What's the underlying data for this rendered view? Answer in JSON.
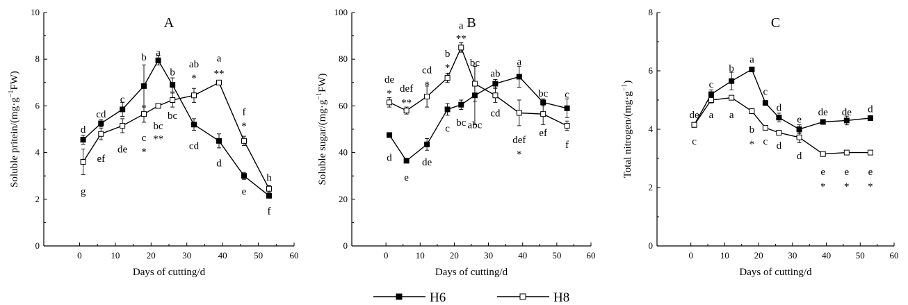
{
  "legend": [
    {
      "name": "H6",
      "marker": "filled-square"
    },
    {
      "name": "H8",
      "marker": "open-square"
    }
  ],
  "chart_data": [
    {
      "type": "line",
      "title": "A",
      "xlabel": "Days of cutting/d",
      "ylabel_main": "Soluble pritein/(mg·g",
      "ylabel_sup": "−1",
      "ylabel_tail": "FW)",
      "xlim": [
        -10,
        60
      ],
      "ylim": [
        0,
        10
      ],
      "xticks": [
        0,
        10,
        20,
        30,
        40,
        50,
        60
      ],
      "yticks": [
        0,
        2,
        4,
        6,
        8,
        10
      ],
      "x": [
        1,
        6,
        12,
        18,
        22,
        26,
        32,
        39,
        46,
        53
      ],
      "series": [
        {
          "name": "H6",
          "values": [
            4.55,
            5.25,
            5.85,
            6.85,
            7.95,
            6.9,
            5.2,
            4.5,
            3.0,
            2.15
          ],
          "errors": [
            0.2,
            0.15,
            0.3,
            0.9,
            0.2,
            0.3,
            0.25,
            0.3,
            0.15,
            0.1
          ]
        },
        {
          "name": "H8",
          "values": [
            3.6,
            4.8,
            5.15,
            5.65,
            6.0,
            6.25,
            6.45,
            7.0,
            4.5,
            2.45
          ],
          "errors": [
            0.55,
            0.25,
            0.3,
            0.35,
            0.1,
            0.3,
            0.3,
            0.05,
            0.2,
            0.15
          ]
        }
      ],
      "annotations": [
        {
          "text": "d",
          "x": 1,
          "y": 5.0
        },
        {
          "text": "g",
          "x": 1,
          "y": 2.35
        },
        {
          "text": "cd",
          "x": 6,
          "y": 5.65
        },
        {
          "text": "ef",
          "x": 6,
          "y": 3.75
        },
        {
          "text": "c",
          "x": 12,
          "y": 6.3
        },
        {
          "text": "de",
          "x": 12,
          "y": 4.15
        },
        {
          "text": "b",
          "x": 18,
          "y": 8.1
        },
        {
          "text": "c",
          "x": 18,
          "y": 4.65
        },
        {
          "text": "*",
          "x": 18,
          "y": 4.05
        },
        {
          "text": "a",
          "x": 22,
          "y": 8.3
        },
        {
          "text": "bc",
          "x": 22,
          "y": 5.15
        },
        {
          "text": "**",
          "x": 22,
          "y": 4.6
        },
        {
          "text": "b",
          "x": 26,
          "y": 7.45
        },
        {
          "text": "bc",
          "x": 26,
          "y": 5.6
        },
        {
          "text": "ab",
          "x": 32,
          "y": 7.8
        },
        {
          "text": "*",
          "x": 32,
          "y": 7.2
        },
        {
          "text": "cd",
          "x": 32,
          "y": 4.3
        },
        {
          "text": "a",
          "x": 39,
          "y": 8.05
        },
        {
          "text": "**",
          "x": 39,
          "y": 7.4
        },
        {
          "text": "d",
          "x": 39,
          "y": 3.55
        },
        {
          "text": "f",
          "x": 46,
          "y": 5.75
        },
        {
          "text": "*",
          "x": 46,
          "y": 5.15
        },
        {
          "text": "e",
          "x": 46,
          "y": 2.35
        },
        {
          "text": "h",
          "x": 53,
          "y": 2.95
        },
        {
          "text": "f",
          "x": 53,
          "y": 1.5
        }
      ]
    },
    {
      "type": "line",
      "title": "B",
      "xlabel": "Days of cutting/d",
      "ylabel_main": "Soluble sugar/(mg·g",
      "ylabel_sup": "−1",
      "ylabel_tail": "FW)",
      "xlim": [
        -10,
        60
      ],
      "ylim": [
        0,
        100
      ],
      "xticks": [
        0,
        10,
        20,
        30,
        40,
        50,
        60
      ],
      "yticks": [
        0,
        20,
        40,
        60,
        80,
        100
      ],
      "x": [
        1,
        6,
        12,
        18,
        22,
        26,
        32,
        39,
        46,
        53
      ],
      "series": [
        {
          "name": "H6",
          "values": [
            47.5,
            36.5,
            43.5,
            58.5,
            60.5,
            64.5,
            69.5,
            72.5,
            61.5,
            59
          ],
          "errors": [
            0.8,
            0.5,
            2.5,
            2.5,
            2.0,
            12.5,
            1.8,
            4.5,
            1.5,
            4
          ]
        },
        {
          "name": "H8",
          "values": [
            61.5,
            58,
            64,
            72,
            85,
            69.5,
            64.5,
            57,
            56.5,
            51.5
          ],
          "errors": [
            2.0,
            1.5,
            4.5,
            2.0,
            2.0,
            7.5,
            3.0,
            5.5,
            4.5,
            2.0
          ]
        }
      ],
      "annotations": [
        {
          "text": "de",
          "x": 1,
          "y": 71.5
        },
        {
          "text": "*",
          "x": 1,
          "y": 65.5
        },
        {
          "text": "d",
          "x": 1,
          "y": 38.0
        },
        {
          "text": "def",
          "x": 6,
          "y": 67.5
        },
        {
          "text": "**",
          "x": 6,
          "y": 61.5
        },
        {
          "text": "e",
          "x": 6,
          "y": 29.5
        },
        {
          "text": "cd",
          "x": 12,
          "y": 75.5
        },
        {
          "text": "*",
          "x": 12,
          "y": 69.0
        },
        {
          "text": "de",
          "x": 12,
          "y": 36.0
        },
        {
          "text": "b",
          "x": 18,
          "y": 82.5
        },
        {
          "text": "*",
          "x": 18,
          "y": 76.5
        },
        {
          "text": "c",
          "x": 18,
          "y": 50.5
        },
        {
          "text": "a",
          "x": 22,
          "y": 94.5
        },
        {
          "text": "**",
          "x": 22,
          "y": 89.0
        },
        {
          "text": "bc",
          "x": 22,
          "y": 53.0
        },
        {
          "text": "bc",
          "x": 26,
          "y": 78.5
        },
        {
          "text": "abc",
          "x": 26,
          "y": 52.0
        },
        {
          "text": "ab",
          "x": 32,
          "y": 74.0
        },
        {
          "text": "cd",
          "x": 32,
          "y": 57.0
        },
        {
          "text": "a",
          "x": 39,
          "y": 79.0
        },
        {
          "text": "def",
          "x": 39,
          "y": 45.5
        },
        {
          "text": "*",
          "x": 39,
          "y": 39.5
        },
        {
          "text": "bc",
          "x": 46,
          "y": 65.5
        },
        {
          "text": "ef",
          "x": 46,
          "y": 48.5
        },
        {
          "text": "c",
          "x": 53,
          "y": 65.0
        },
        {
          "text": "f",
          "x": 53,
          "y": 43.5
        }
      ]
    },
    {
      "type": "line",
      "title": "C",
      "xlabel": "Days of cutting/d",
      "ylabel_main": "Total nitrogen/(mg·g",
      "ylabel_sup": "−1",
      "ylabel_tail": ")",
      "xlim": [
        -10,
        60
      ],
      "ylim": [
        0,
        8
      ],
      "xticks": [
        0,
        10,
        20,
        30,
        40,
        50,
        60
      ],
      "yticks": [
        0,
        2,
        4,
        6,
        8
      ],
      "x": [
        1,
        6,
        12,
        18,
        22,
        26,
        32,
        39,
        46,
        53
      ],
      "series": [
        {
          "name": "H6",
          "values": [
            4.15,
            5.2,
            5.65,
            6.05,
            4.9,
            4.4,
            4.0,
            4.25,
            4.3,
            4.38
          ],
          "errors": [
            0.05,
            0.15,
            0.3,
            0.05,
            0.05,
            0.15,
            0.15,
            0.07,
            0.15,
            0.08
          ]
        },
        {
          "name": "H8",
          "values": [
            4.15,
            5.0,
            5.08,
            4.62,
            4.05,
            3.88,
            3.72,
            3.15,
            3.2,
            3.2
          ],
          "errors": [
            0.05,
            0.1,
            0.05,
            0.08,
            0.03,
            0.03,
            0.18,
            0.03,
            0.05,
            0.03
          ]
        }
      ],
      "annotations": [
        {
          "text": "de",
          "x": 1,
          "y": 4.5
        },
        {
          "text": "c",
          "x": 1,
          "y": 3.6
        },
        {
          "text": "c",
          "x": 6,
          "y": 5.55
        },
        {
          "text": "a",
          "x": 6,
          "y": 4.5
        },
        {
          "text": "b",
          "x": 12,
          "y": 6.1
        },
        {
          "text": "a",
          "x": 12,
          "y": 4.5
        },
        {
          "text": "a",
          "x": 18,
          "y": 6.4
        },
        {
          "text": "b",
          "x": 18,
          "y": 4.0
        },
        {
          "text": "*",
          "x": 18,
          "y": 3.5
        },
        {
          "text": "c",
          "x": 22,
          "y": 5.3
        },
        {
          "text": "c",
          "x": 22,
          "y": 3.6
        },
        {
          "text": "d",
          "x": 26,
          "y": 4.75
        },
        {
          "text": "d",
          "x": 26,
          "y": 3.45
        },
        {
          "text": "e",
          "x": 32,
          "y": 4.35
        },
        {
          "text": "d",
          "x": 32,
          "y": 3.1
        },
        {
          "text": "de",
          "x": 39,
          "y": 4.6
        },
        {
          "text": "e",
          "x": 39,
          "y": 2.55
        },
        {
          "text": "*",
          "x": 39,
          "y": 2.05
        },
        {
          "text": "de",
          "x": 46,
          "y": 4.6
        },
        {
          "text": "e",
          "x": 46,
          "y": 2.55
        },
        {
          "text": "*",
          "x": 46,
          "y": 2.05
        },
        {
          "text": "d",
          "x": 53,
          "y": 4.7
        },
        {
          "text": "e",
          "x": 53,
          "y": 2.55
        },
        {
          "text": "*",
          "x": 53,
          "y": 2.05
        }
      ]
    }
  ]
}
